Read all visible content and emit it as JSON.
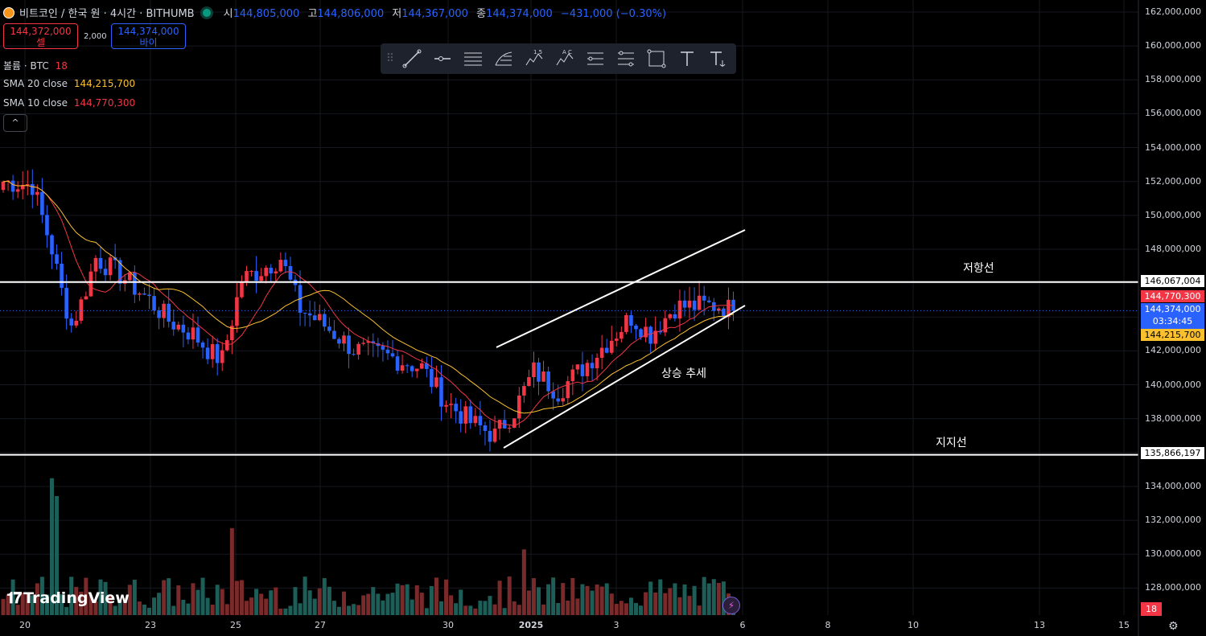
{
  "header": {
    "title": "비트코인 / 한국 원 · 4시간 · BITHUMB",
    "open_label": "시",
    "open": "144,805,000",
    "high_label": "고",
    "high": "144,806,000",
    "low_label": "저",
    "low": "144,367,000",
    "close_label": "종",
    "close": "144,374,000",
    "change": "−431,000 (−0.30%)"
  },
  "trade": {
    "sell_price": "144,372,000",
    "sell_label": "셀",
    "spread": "2,000",
    "buy_price": "144,374,000",
    "buy_label": "바이"
  },
  "legend": {
    "volume_label": "볼륨 · BTC",
    "volume_value": "18",
    "sma20_label": "SMA 20 close",
    "sma20_value": "144,215,700",
    "sma10_label": "SMA 10 close",
    "sma10_value": "144,770,300",
    "collapse": "^"
  },
  "toolbar": [
    "trend-line-icon",
    "horizontal-ray-icon",
    "parallel-channel-icon",
    "fib-retracement-icon",
    "elliott-wave-icon",
    "xabcd-pattern-icon",
    "price-range-icon",
    "date-price-range-icon",
    "rectangle-icon",
    "text-icon",
    "anchored-text-icon"
  ],
  "colors": {
    "up": "#f23645",
    "down": "#2962ff",
    "sma10": "#f23645",
    "sma20": "#fbc02d",
    "up_vol": "#7a2a2a",
    "down_vol": "#1d5f58"
  },
  "price_axis": [
    "162,000,000",
    "160,000,000",
    "158,000,000",
    "156,000,000",
    "154,000,000",
    "152,000,000",
    "150,000,000",
    "148,000,000",
    "142,000,000",
    "140,000,000",
    "138,000,000",
    "134,000,000",
    "132,000,000",
    "130,000,000",
    "128,000,000"
  ],
  "price_tags": {
    "resistance": "146,067,004",
    "sma10": "144,770,300",
    "last": "144,374,000",
    "countdown": "03:34:45",
    "sma20": "144,215,700",
    "support": "135,866,197"
  },
  "time_axis": [
    "20",
    "23",
    "25",
    "27",
    "30",
    "2025",
    "3",
    "6",
    "8",
    "10",
    "13",
    "15"
  ],
  "annotations": {
    "resistance": "저항선",
    "support": "지지선",
    "trend": "상승 추세"
  },
  "volume_badge": "18",
  "branding": "TradingView",
  "chart_data": {
    "type": "candlestick",
    "resistance_level": 146067004,
    "support_level": 135866197,
    "ylim": [
      126500000,
      163000000
    ],
    "series": [
      {
        "name": "SMA 20 close"
      },
      {
        "name": "SMA 10 close"
      },
      {
        "name": "볼륨 · BTC"
      }
    ]
  }
}
